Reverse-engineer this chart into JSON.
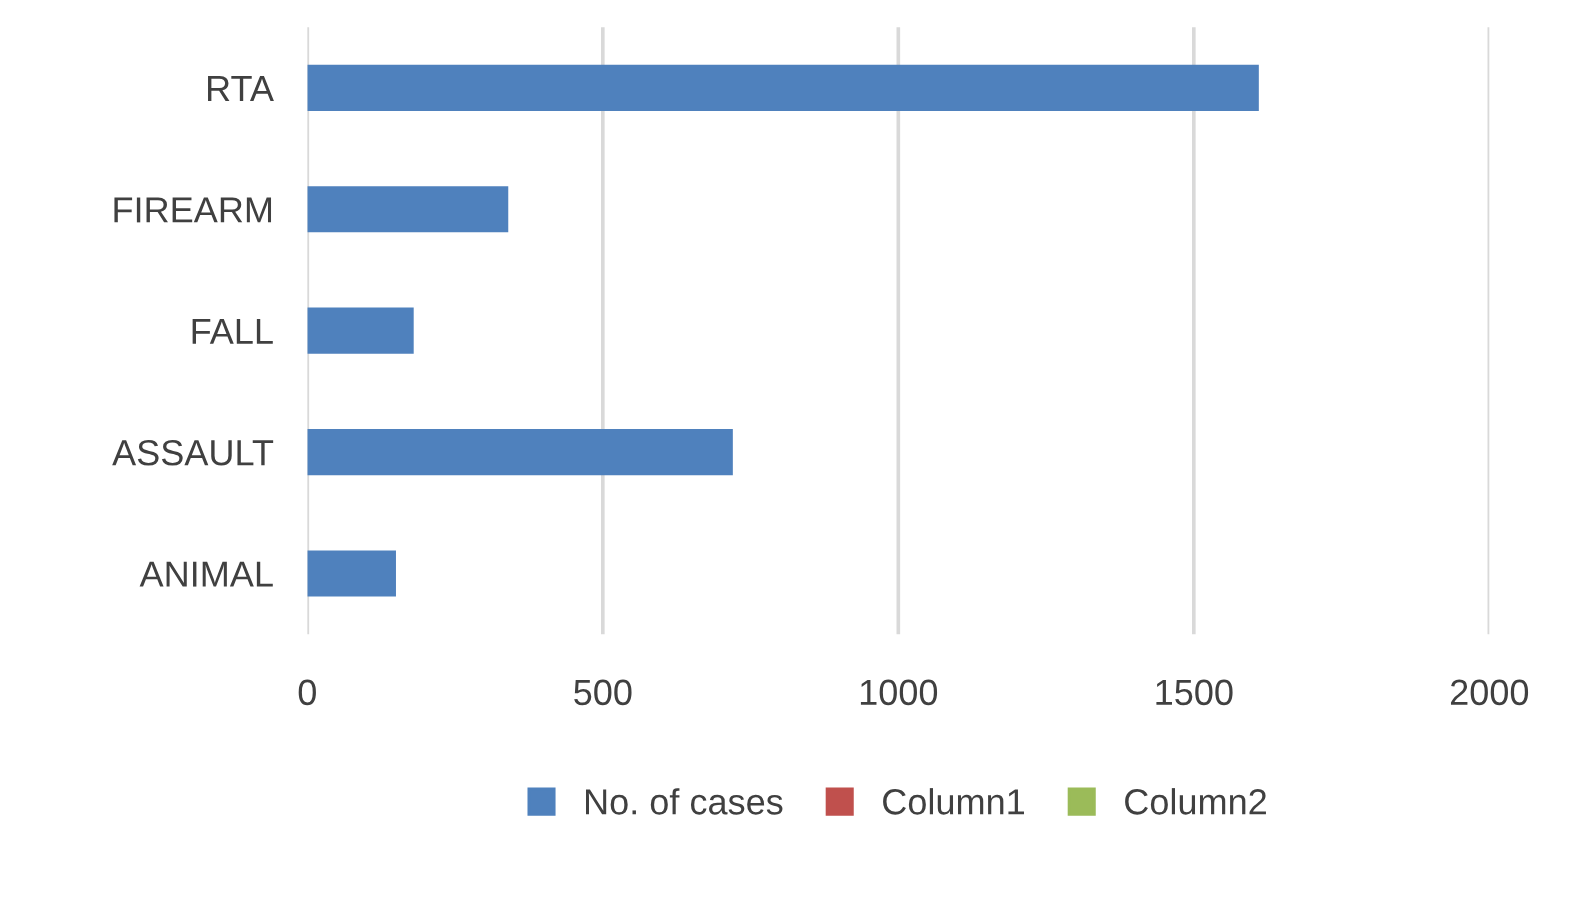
{
  "chart_data": {
    "type": "bar",
    "orientation": "horizontal",
    "categories": [
      "RTA",
      "FIREARM",
      "FALL",
      "ASSAULT",
      "ANIMAL"
    ],
    "series": [
      {
        "name": "No. of cases",
        "color": "#4f81bd",
        "values": [
          1610,
          340,
          180,
          720,
          150
        ]
      },
      {
        "name": "Column1",
        "color": "#c0504d",
        "values": [
          null,
          null,
          null,
          null,
          null
        ]
      },
      {
        "name": "Column2",
        "color": "#9bbb59",
        "values": [
          null,
          null,
          null,
          null,
          null
        ]
      }
    ],
    "xlim": [
      0,
      2000
    ],
    "xticks": [
      0,
      500,
      1000,
      1500,
      2000
    ],
    "grid": "x",
    "legend": "bottom"
  }
}
